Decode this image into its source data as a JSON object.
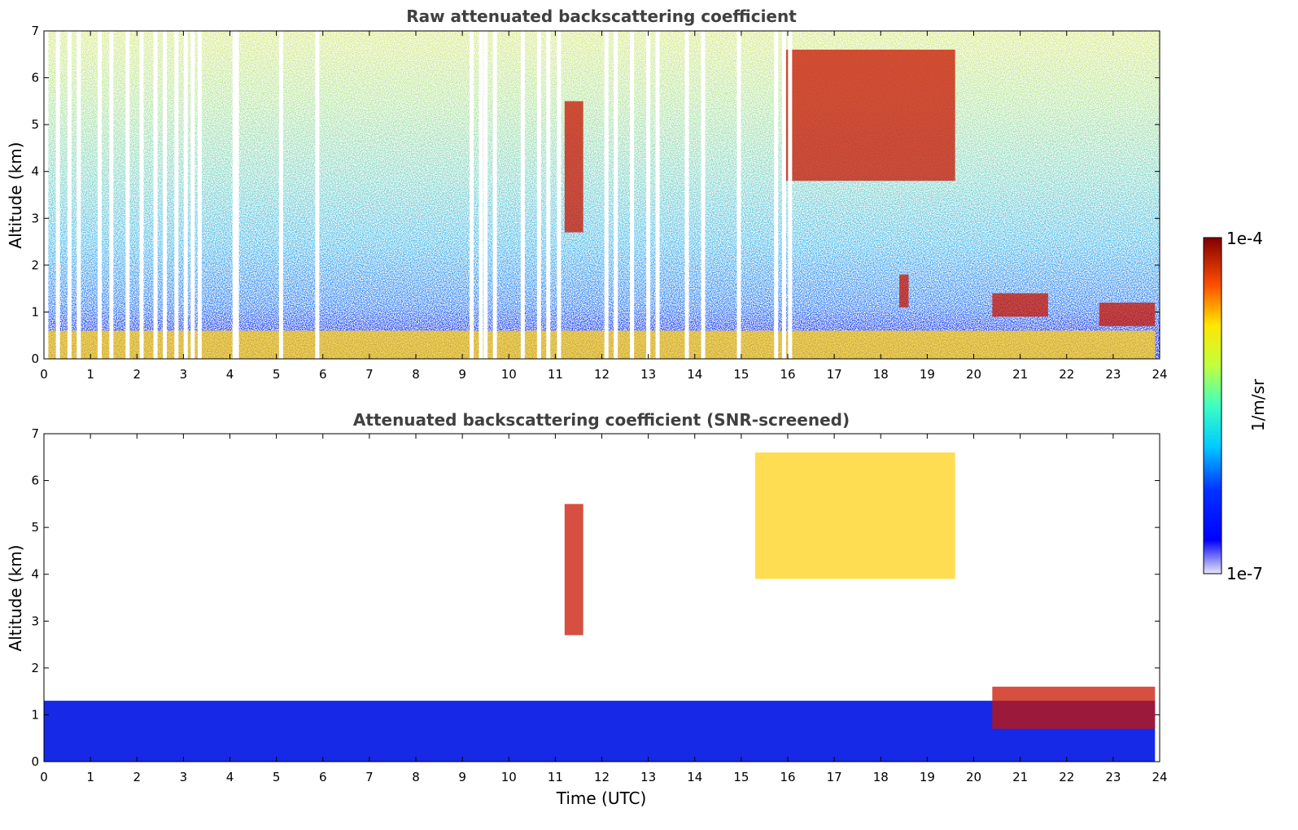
{
  "chart_data": [
    {
      "type": "heatmap",
      "title": "Raw attenuated backscattering coefficient",
      "xlabel": "",
      "ylabel": "Altitude (km)",
      "xlim": [
        0,
        24
      ],
      "ylim": [
        0,
        7
      ],
      "x_ticks": [
        "0",
        "1",
        "2",
        "3",
        "4",
        "5",
        "6",
        "7",
        "8",
        "9",
        "10",
        "11",
        "12",
        "13",
        "14",
        "15",
        "16",
        "17",
        "18",
        "19",
        "20",
        "21",
        "22",
        "23",
        "24"
      ],
      "y_ticks": [
        "0",
        "1",
        "2",
        "3",
        "4",
        "5",
        "6",
        "7"
      ],
      "data_gaps_utc": [
        0.05,
        0.3,
        0.55,
        0.75,
        1.2,
        1.45,
        1.8,
        2.1,
        2.4,
        2.6,
        2.85,
        3.05,
        3.2,
        3.35,
        4.1,
        4.15,
        5.1,
        5.88,
        9.2,
        9.4,
        9.5,
        9.7,
        10.3,
        10.65,
        10.85,
        11.08,
        12.1,
        12.3,
        12.65,
        13.0,
        13.2,
        13.83,
        14.18,
        14.95,
        15.75,
        15.92,
        16.05
      ],
      "features": [
        {
          "name": "boundary layer",
          "x_range": [
            0,
            23.9
          ],
          "alt_range": [
            0,
            0.6
          ],
          "level": "high"
        },
        {
          "name": "cirrus cloud",
          "x_range": [
            15.9,
            19.6
          ],
          "alt_range": [
            3.8,
            6.6
          ],
          "level": "very high"
        },
        {
          "name": "fall streak",
          "x_range": [
            11.2,
            11.6
          ],
          "alt_range": [
            2.7,
            5.5
          ],
          "level": "very high"
        },
        {
          "name": "low cloud",
          "x_range": [
            22.7,
            23.9
          ],
          "alt_range": [
            0.7,
            1.2
          ],
          "level": "very high"
        },
        {
          "name": "low cloud",
          "x_range": [
            20.4,
            21.6
          ],
          "alt_range": [
            0.9,
            1.4
          ],
          "level": "very high"
        },
        {
          "name": "small cloud",
          "x_range": [
            18.4,
            18.6
          ],
          "alt_range": [
            1.1,
            1.8
          ],
          "level": "very high"
        }
      ]
    },
    {
      "type": "heatmap",
      "title": "Attenuated backscattering coefficient (SNR-screened)",
      "xlabel": "Time (UTC)",
      "ylabel": "Altitude (km)",
      "xlim": [
        0,
        24
      ],
      "ylim": [
        0,
        7
      ],
      "x_ticks": [
        "0",
        "1",
        "2",
        "3",
        "4",
        "5",
        "6",
        "7",
        "8",
        "9",
        "10",
        "11",
        "12",
        "13",
        "14",
        "15",
        "16",
        "17",
        "18",
        "19",
        "20",
        "21",
        "22",
        "23",
        "24"
      ],
      "y_ticks": [
        "0",
        "1",
        "2",
        "3",
        "4",
        "5",
        "6",
        "7"
      ],
      "features": [
        {
          "name": "boundary layer",
          "x_range": [
            0,
            23.9
          ],
          "alt_range": [
            0,
            1.3
          ],
          "level": "low"
        },
        {
          "name": "cirrus cloud",
          "x_range": [
            15.3,
            19.6
          ],
          "alt_range": [
            3.9,
            6.6
          ],
          "level": "high"
        },
        {
          "name": "fall streak",
          "x_range": [
            11.2,
            11.6
          ],
          "alt_range": [
            2.7,
            5.5
          ],
          "level": "very high"
        },
        {
          "name": "low cloud",
          "x_range": [
            20.4,
            23.9
          ],
          "alt_range": [
            0.7,
            1.6
          ],
          "level": "very high"
        }
      ]
    }
  ],
  "colorbar": {
    "label": "1/m/sr",
    "min_label": "1e-7",
    "max_label": "1e-4",
    "scale": "log",
    "colormap": "jet"
  }
}
